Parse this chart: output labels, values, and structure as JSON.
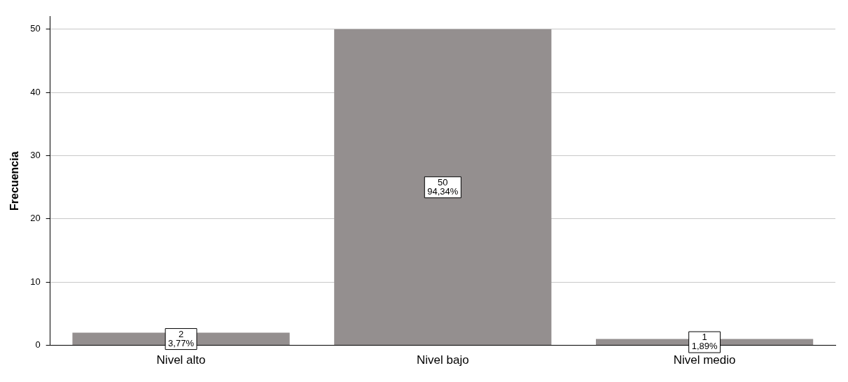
{
  "chart_data": {
    "type": "bar",
    "ylabel": "Frecuencia",
    "categories": [
      "Nivel alto",
      "Nivel bajo",
      "Nivel medio"
    ],
    "values": [
      2,
      50,
      1
    ],
    "value_labels": [
      "2\n3,77%",
      "50\n94,34%",
      "1\n1,89%"
    ],
    "color": "#948f8f",
    "ylim": [
      0,
      52
    ],
    "yticks": [
      0,
      10,
      20,
      30,
      40,
      50
    ],
    "grid": "y",
    "legend": false
  }
}
